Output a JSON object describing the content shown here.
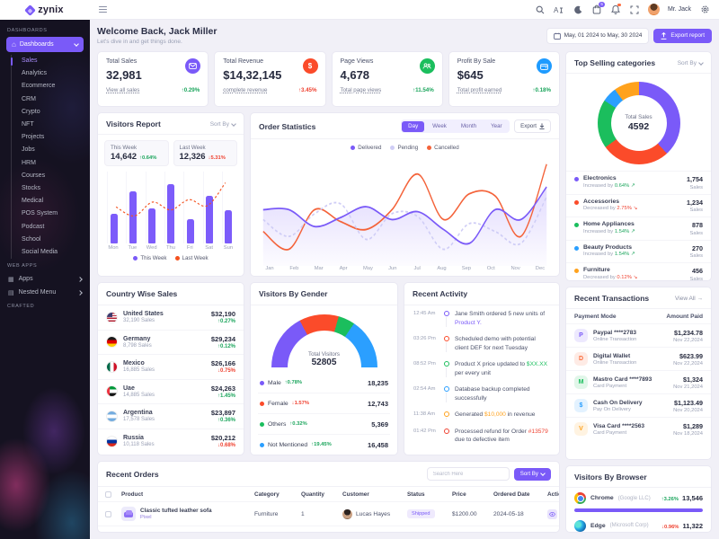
{
  "theme": {
    "primary": "#7a5af8",
    "green": "#1ba55c",
    "red": "#ef4130",
    "orange": "#ffa21d",
    "blue": "#2b9fff"
  },
  "sidebar": {
    "logo": "zynix",
    "sections": {
      "dashboards": "DASHBOARDS",
      "webapps": "WEB APPS",
      "crafted": "CRAFTED"
    },
    "dashboards_label": "Dashboards",
    "items": [
      "Sales",
      "Analytics",
      "Ecommerce",
      "CRM",
      "Crypto",
      "NFT",
      "Projects",
      "Jobs",
      "HRM",
      "Courses",
      "Stocks",
      "Medical",
      "POS System",
      "Podcast",
      "School",
      "Social Media"
    ],
    "active_item": "Sales",
    "apps_label": "Apps",
    "nested_label": "Nested Menu"
  },
  "topbar": {
    "user": "Mr. Jack",
    "cart_badge": "5"
  },
  "welcome": {
    "title": "Welcome Back, Jack Miller",
    "subtitle": "Let's dive in and get things done.",
    "date_range": "May, 01 2024 to May, 30 2024",
    "export_label": "Export report"
  },
  "kpis": [
    {
      "label": "Total Sales",
      "value": "32,981",
      "link": "View all sales",
      "trend": {
        "delta": "0.29%",
        "dir": "up",
        "tone": "green"
      },
      "icon": "mail-icon",
      "icon_bg": "#7a5af8"
    },
    {
      "label": "Total Revenue",
      "value": "$14,32,145",
      "link": "complete revenue",
      "trend": {
        "delta": "3.45%",
        "dir": "up",
        "tone": "red"
      },
      "icon": "dollar-icon",
      "icon_bg": "#fb4b2a"
    },
    {
      "label": "Page Views",
      "value": "4,678",
      "link": "Total page views",
      "trend": {
        "delta": "11.54%",
        "dir": "up",
        "tone": "green"
      },
      "icon": "users-icon",
      "icon_bg": "#1bbe5d"
    },
    {
      "label": "Profit By Sale",
      "value": "$645",
      "link": "Total profit earned",
      "trend": {
        "delta": "0.18%",
        "dir": "up",
        "tone": "green"
      },
      "icon": "wallet-icon",
      "icon_bg": "#1e9bff"
    }
  ],
  "top_categories": {
    "title": "Top Selling categories",
    "sort_label": "Sort By",
    "center_label": "Total Sales",
    "center_value": "4592",
    "sales_word": "Sales",
    "items": [
      {
        "name": "Electronics",
        "prefix": "Increased by",
        "trend": {
          "delta": "0.64%",
          "dir": "up",
          "tone": "green"
        },
        "sales": "1,754",
        "value": 1754,
        "color": "#7a5af8"
      },
      {
        "name": "Accessories",
        "prefix": "Decreased by",
        "trend": {
          "delta": "2.75%",
          "dir": "down",
          "tone": "red"
        },
        "sales": "1,234",
        "value": 1234,
        "color": "#fb4b2a"
      },
      {
        "name": "Home Appliances",
        "prefix": "Increased by",
        "trend": {
          "delta": "1.54%",
          "dir": "up",
          "tone": "green"
        },
        "sales": "878",
        "value": 878,
        "color": "#1bbe5d"
      },
      {
        "name": "Beauty Products",
        "prefix": "Increased by",
        "trend": {
          "delta": "1.54%",
          "dir": "up",
          "tone": "green"
        },
        "sales": "270",
        "value": 270,
        "color": "#2b9fff"
      },
      {
        "name": "Furniture",
        "prefix": "Decreased by",
        "trend": {
          "delta": "0.12%",
          "dir": "down",
          "tone": "red"
        },
        "sales": "456",
        "value": 456,
        "color": "#ffa21d"
      }
    ]
  },
  "visitors_report": {
    "title": "Visitors Report",
    "sort_label": "Sort By",
    "this_week": {
      "label": "This Week",
      "value": "14,642",
      "trend": {
        "delta": "0.64%",
        "dir": "up",
        "tone": "green"
      }
    },
    "last_week": {
      "label": "Last Week",
      "value": "12,326",
      "trend": {
        "delta": "5.31%",
        "dir": "down",
        "tone": "red"
      }
    },
    "days": [
      "Mon",
      "Tue",
      "Wed",
      "Thu",
      "Fri",
      "Sat",
      "Sun"
    ],
    "bars": [
      42,
      75,
      50,
      85,
      35,
      68,
      48
    ],
    "line": [
      50,
      35,
      58,
      45,
      62,
      52,
      90
    ],
    "legend": [
      {
        "label": "This Week",
        "color": "#7a5af8"
      },
      {
        "label": "Last Week",
        "color": "#f4511e"
      }
    ]
  },
  "order_stats": {
    "title": "Order Statistics",
    "tabs": [
      "Day",
      "Week",
      "Month",
      "Year"
    ],
    "active_tab": "Day",
    "export_label": "Export",
    "legend": [
      {
        "label": "Delivered",
        "color": "#7a5af8"
      },
      {
        "label": "Pending",
        "color": "#cfcdf6"
      },
      {
        "label": "Cancelled",
        "color": "#f4633a"
      }
    ],
    "months": [
      "Jan",
      "Feb",
      "Mar",
      "Apr",
      "May",
      "Jun",
      "Jul",
      "Aug",
      "Sep",
      "Oct",
      "Nov",
      "Dec"
    ],
    "series": [
      {
        "name": "Delivered",
        "color": "#7a5af8",
        "fill": true,
        "dash": false,
        "values": [
          52,
          52,
          35,
          44,
          55,
          42,
          50,
          32,
          18,
          52,
          42,
          75
        ]
      },
      {
        "name": "Pending",
        "color": "#cfcdf6",
        "fill": false,
        "dash": true,
        "values": [
          42,
          25,
          48,
          58,
          22,
          48,
          45,
          12,
          38,
          30,
          18,
          65
        ]
      },
      {
        "name": "Cancelled",
        "color": "#f4633a",
        "fill": false,
        "dash": false,
        "values": [
          30,
          12,
          52,
          40,
          32,
          52,
          88,
          42,
          68,
          66,
          25,
          98
        ]
      }
    ]
  },
  "country_sales": {
    "title": "Country Wise Sales",
    "rows": [
      {
        "name": "United States",
        "sub": "32,190 Sales",
        "amount": "$32,190",
        "trend": {
          "delta": "0.27%",
          "dir": "up",
          "tone": "green"
        },
        "flag": "us"
      },
      {
        "name": "Germany",
        "sub": "8,798 Sales",
        "amount": "$29,234",
        "trend": {
          "delta": "0.12%",
          "dir": "up",
          "tone": "green"
        },
        "flag": "de"
      },
      {
        "name": "Mexico",
        "sub": "16,885 Sales",
        "amount": "$26,166",
        "trend": {
          "delta": "0.75%",
          "dir": "down",
          "tone": "red"
        },
        "flag": "mx"
      },
      {
        "name": "Uae",
        "sub": "14,885 Sales",
        "amount": "$24,263",
        "trend": {
          "delta": "1.45%",
          "dir": "up",
          "tone": "green"
        },
        "flag": "ae"
      },
      {
        "name": "Argentina",
        "sub": "17,578 Sales",
        "amount": "$23,897",
        "trend": {
          "delta": "0.36%",
          "dir": "up",
          "tone": "green"
        },
        "flag": "ar"
      },
      {
        "name": "Russia",
        "sub": "10,118 Sales",
        "amount": "$20,212",
        "trend": {
          "delta": "0.68%",
          "dir": "down",
          "tone": "red"
        },
        "flag": "ru"
      }
    ]
  },
  "gender": {
    "title": "Visitors By Gender",
    "center_label": "Total Visitors",
    "center_value": "52805",
    "rows": [
      {
        "label": "Male",
        "trend": {
          "delta": "0.78%",
          "dir": "up",
          "tone": "green"
        },
        "value": "18,235",
        "num": 18235,
        "color": "#7a5af8"
      },
      {
        "label": "Female",
        "trend": {
          "delta": "1.57%",
          "dir": "down",
          "tone": "red"
        },
        "value": "12,743",
        "num": 12743,
        "color": "#fb4b2a"
      },
      {
        "label": "Others",
        "trend": {
          "delta": "0.32%",
          "dir": "up",
          "tone": "green"
        },
        "value": "5,369",
        "num": 5369,
        "color": "#1bbe5d"
      },
      {
        "label": "Not Mentioned",
        "trend": {
          "delta": "19.45%",
          "dir": "up",
          "tone": "green"
        },
        "value": "16,458",
        "num": 16458,
        "color": "#2b9fff"
      }
    ]
  },
  "activity": {
    "title": "Recent Activity",
    "rows": [
      {
        "time": "12:45 Am",
        "color": "#7a5af8",
        "pre": "Jane Smith ordered 5 new units of ",
        "hl": "Product Y.",
        "post": "",
        "hl_color": "#7a5af8"
      },
      {
        "time": "03:26 Pm",
        "color": "#fb4b2a",
        "pre": "Scheduled demo with potential client DEF for next Tuesday",
        "hl": "",
        "post": "",
        "hl_color": ""
      },
      {
        "time": "08:52 Pm",
        "color": "#1bbe5d",
        "pre": "Product X price updated to ",
        "hl": "$XX.XX",
        "post": " per every unit",
        "hl_color": "#1bbe5d"
      },
      {
        "time": "02:54 Am",
        "color": "#2b9fff",
        "pre": "Database backup completed successfully",
        "hl": "",
        "post": "",
        "hl_color": ""
      },
      {
        "time": "11:38 Am",
        "color": "#ffa21d",
        "pre": "Generated ",
        "hl": "$10,000",
        "post": " in revenue",
        "hl_color": "#ffa21d"
      },
      {
        "time": "01:42 Pm",
        "color": "#ef4130",
        "pre": "Processed refund for Order ",
        "hl": "#13579",
        "post": " due to defective item",
        "hl_color": "#ef4130"
      }
    ]
  },
  "transactions": {
    "title": "Recent Transactions",
    "view_all": "View All →",
    "col_mode": "Payment Mode",
    "col_amount": "Amount Paid",
    "rows": [
      {
        "name": "Paypal ****2783",
        "sub": "Online Transaction",
        "amount": "$1,234.78",
        "date": "Nov 22,2024",
        "color": "#7a5af8",
        "glyph": "P"
      },
      {
        "name": "Digital Wallet",
        "sub": "Online Transaction",
        "amount": "$623.99",
        "date": "Nov 22,2024",
        "color": "#fb6b3a",
        "glyph": "D"
      },
      {
        "name": "Mastro Card ****7893",
        "sub": "Card Payment",
        "amount": "$1,324",
        "date": "Nov 21,2024",
        "color": "#1bbe5d",
        "glyph": "M"
      },
      {
        "name": "Cash On Delivery",
        "sub": "Pay On Delivery",
        "amount": "$1,123.49",
        "date": "Nov 20,2024",
        "color": "#2b9fff",
        "glyph": "$"
      },
      {
        "name": "Visa Card ****2563",
        "sub": "Card Payment",
        "amount": "$1,289",
        "date": "Nov 18,2024",
        "color": "#ffa21d",
        "glyph": "V"
      }
    ]
  },
  "orders": {
    "title": "Recent Orders",
    "search_placeholder": "Search Here",
    "sort_label": "Sort By",
    "columns": [
      "Product",
      "Category",
      "Quantity",
      "Customer",
      "Status",
      "Price",
      "Ordered Date",
      "Action"
    ],
    "rows": [
      {
        "product": "Classic tufted leather sofa",
        "sub": "Pixel",
        "category": "Furniture",
        "qty": "1",
        "customer": "Lucas Hayes",
        "status": "Shipped",
        "price": "$1200.00",
        "date": "2024-05-18"
      }
    ]
  },
  "browsers": {
    "title": "Visitors By Browser",
    "rows": [
      {
        "name": "Chrome",
        "vendor": "(Google LLC)",
        "trend": {
          "delta": "3.26%",
          "dir": "up",
          "tone": "green"
        },
        "value": "13,546",
        "bar": 100,
        "color": "#7a5af8"
      },
      {
        "name": "Edge",
        "vendor": "(Microsoft Corp)",
        "trend": {
          "delta": "0.96%",
          "dir": "down",
          "tone": "red"
        },
        "value": "11,322",
        "bar": 85,
        "color": "#ff5e2c"
      }
    ]
  }
}
